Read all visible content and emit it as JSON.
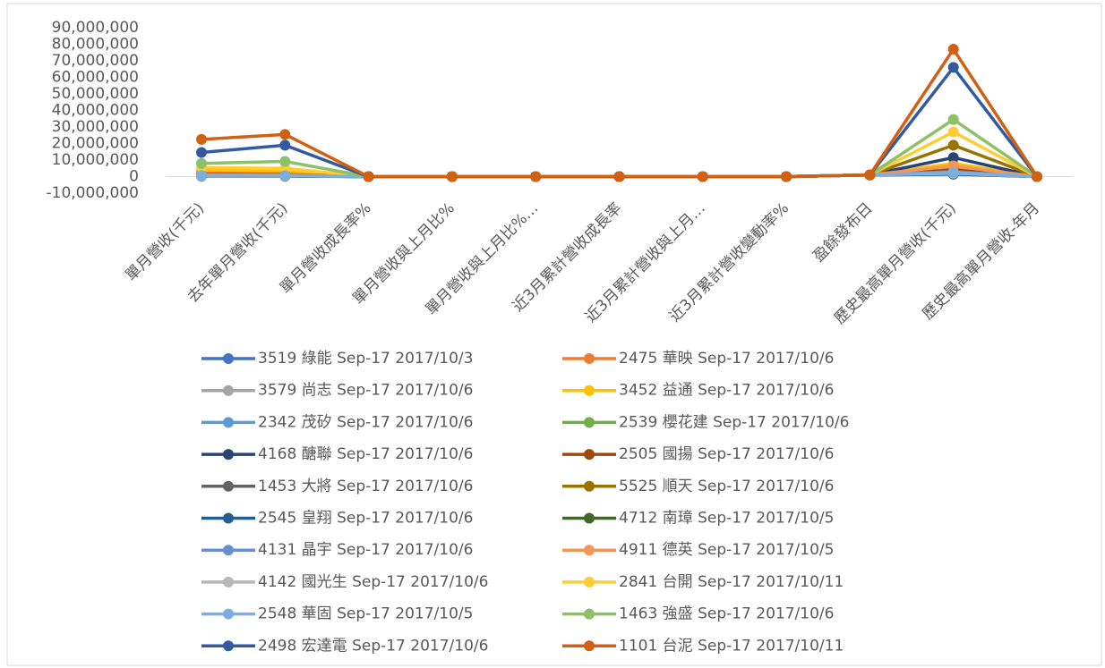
{
  "chart_data": {
    "type": "line",
    "categories": [
      "單月營收(千元)",
      "去年單月營收(千元)",
      "單月營收成長率%",
      "單月營收與上月比%",
      "單月營收與上月比%…",
      "近3月累計營收成長率",
      "近3月累計營收與上月…",
      "近3月累計營收變動率%",
      "盈餘發布日",
      "歷史最高單月營收(千元)",
      "歷史最高單月營收-年月"
    ],
    "ylim": [
      -10000000,
      90000000
    ],
    "yticks": [
      {
        "value": -10000000,
        "label": "-10,000,000"
      },
      0,
      {
        "value": 10000000,
        "label": "10,000,000"
      },
      {
        "value": 20000000,
        "label": "20,000,000"
      },
      {
        "value": 30000000,
        "label": "30,000,000"
      },
      {
        "value": 40000000,
        "label": "40,000,000"
      },
      {
        "value": 50000000,
        "label": "50,000,000"
      },
      {
        "value": 60000000,
        "label": "60,000,000"
      },
      {
        "value": 70000000,
        "label": "70,000,000"
      },
      {
        "value": 80000000,
        "label": "80,000,000"
      },
      {
        "value": 90000000,
        "label": "90,000,000"
      }
    ],
    "series": [
      {
        "name": "3519 綠能 Sep-17 2017/10/3",
        "color": "#4472c4",
        "values": [
          1200000,
          800000,
          0,
          0,
          0,
          0,
          0,
          0,
          1000000,
          1800000,
          0
        ]
      },
      {
        "name": "2475 華映 Sep-17 2017/10/6",
        "color": "#ed7d31",
        "values": [
          3200000,
          2500000,
          0,
          0,
          0,
          0,
          0,
          0,
          1000000,
          5000000,
          0
        ]
      },
      {
        "name": "3579 尚志 Sep-17 2017/10/6",
        "color": "#a5a5a5",
        "values": [
          500000,
          400000,
          0,
          0,
          0,
          0,
          0,
          0,
          1000000,
          2000000,
          0
        ]
      },
      {
        "name": "3452 益通 Sep-17 2017/10/6",
        "color": "#ffc000",
        "values": [
          4000000,
          3500000,
          0,
          0,
          0,
          0,
          0,
          0,
          1000000,
          8000000,
          0
        ]
      },
      {
        "name": "2342 茂矽 Sep-17 2017/10/6",
        "color": "#5b9bd5",
        "values": [
          600000,
          500000,
          0,
          0,
          0,
          0,
          0,
          0,
          1000000,
          1500000,
          0
        ]
      },
      {
        "name": "2539 櫻花建 Sep-17 2017/10/6",
        "color": "#70ad47",
        "values": [
          1000000,
          1000000,
          0,
          0,
          0,
          0,
          0,
          0,
          1000000,
          3000000,
          0
        ]
      },
      {
        "name": "4168 醣聯 Sep-17 2017/10/6",
        "color": "#264478",
        "values": [
          300000,
          300000,
          0,
          0,
          0,
          0,
          0,
          0,
          1000000,
          11500000,
          0
        ]
      },
      {
        "name": "2505 國揚 Sep-17 2017/10/6",
        "color": "#9e480e",
        "values": [
          900000,
          700000,
          0,
          0,
          0,
          0,
          0,
          0,
          1000000,
          4000000,
          0
        ]
      },
      {
        "name": "1453 大將 Sep-17 2017/10/6",
        "color": "#636363",
        "values": [
          700000,
          600000,
          0,
          0,
          0,
          0,
          0,
          0,
          1000000,
          3000000,
          0
        ]
      },
      {
        "name": "5525 順天 Sep-17 2017/10/6",
        "color": "#997300",
        "values": [
          1500000,
          1300000,
          0,
          0,
          0,
          0,
          0,
          0,
          1000000,
          19000000,
          0
        ]
      },
      {
        "name": "2545 皇翔 Sep-17 2017/10/6",
        "color": "#255e91",
        "values": [
          400000,
          400000,
          0,
          0,
          0,
          0,
          0,
          0,
          1000000,
          1500000,
          0
        ]
      },
      {
        "name": "4712 南璋 Sep-17 2017/10/5",
        "color": "#43682b",
        "values": [
          600000,
          500000,
          0,
          0,
          0,
          0,
          0,
          0,
          1000000,
          2500000,
          0
        ]
      },
      {
        "name": "4131 晶宇 Sep-17 2017/10/6",
        "color": "#698ed0",
        "values": [
          800000,
          700000,
          0,
          0,
          0,
          0,
          0,
          0,
          1000000,
          3000000,
          0
        ]
      },
      {
        "name": "4911 德英 Sep-17 2017/10/5",
        "color": "#f1975a",
        "values": [
          1000000,
          900000,
          0,
          0,
          0,
          0,
          0,
          0,
          1000000,
          6500000,
          0
        ]
      },
      {
        "name": "4142 國光生 Sep-17 2017/10/6",
        "color": "#b7b7b7",
        "values": [
          500000,
          500000,
          0,
          0,
          0,
          0,
          0,
          0,
          1000000,
          2000000,
          0
        ]
      },
      {
        "name": "2841 台開 Sep-17 2017/10/11",
        "color": "#ffcd33",
        "values": [
          5500000,
          5000000,
          0,
          0,
          0,
          0,
          0,
          0,
          1000000,
          27000000,
          0
        ]
      },
      {
        "name": "2548 華固 Sep-17 2017/10/5",
        "color": "#7cafdd",
        "values": [
          600000,
          600000,
          0,
          0,
          0,
          0,
          0,
          0,
          1000000,
          2500000,
          0
        ]
      },
      {
        "name": "1463 強盛 Sep-17 2017/10/6",
        "color": "#8cc168",
        "values": [
          8000000,
          9200000,
          0,
          0,
          0,
          0,
          0,
          0,
          1000000,
          34500000,
          0
        ]
      },
      {
        "name": "2498 宏達電 Sep-17 2017/10/6",
        "color": "#335aa1",
        "values": [
          14600000,
          19000000,
          0,
          0,
          0,
          0,
          0,
          0,
          1000000,
          66000000,
          0
        ]
      },
      {
        "name": "1101 台泥 Sep-17 2017/10/11",
        "color": "#d26012",
        "values": [
          22500000,
          25500000,
          0,
          0,
          0,
          0,
          0,
          0,
          1000000,
          77000000,
          0
        ]
      }
    ]
  }
}
